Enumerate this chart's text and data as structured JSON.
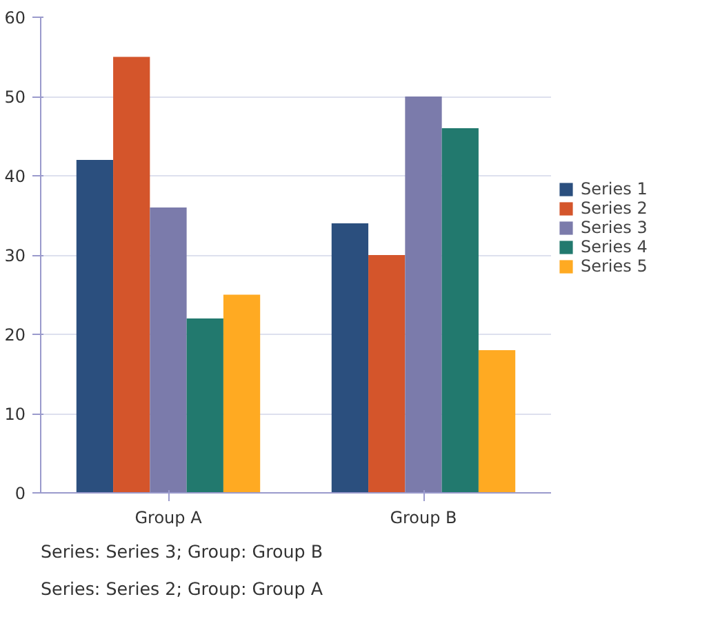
{
  "chart_data": {
    "type": "bar",
    "categories": [
      "Group A",
      "Group B"
    ],
    "series": [
      {
        "name": "Series 1",
        "color": "#2b4f7e",
        "values": [
          42,
          34
        ]
      },
      {
        "name": "Series 2",
        "color": "#d4552b",
        "values": [
          55,
          30
        ]
      },
      {
        "name": "Series 3",
        "color": "#7b7bab",
        "values": [
          36,
          50
        ]
      },
      {
        "name": "Series 4",
        "color": "#22796e",
        "values": [
          22,
          46
        ]
      },
      {
        "name": "Series 5",
        "color": "#ffaa22",
        "values": [
          25,
          18
        ]
      }
    ],
    "ylim": [
      0,
      60
    ],
    "yticks": [
      0,
      10,
      20,
      30,
      40,
      50,
      60
    ],
    "grid": "y",
    "legend": "right",
    "annotations": [
      "Series: Series 3; Group: Group B",
      "Series: Series 2; Group: Group A"
    ]
  }
}
